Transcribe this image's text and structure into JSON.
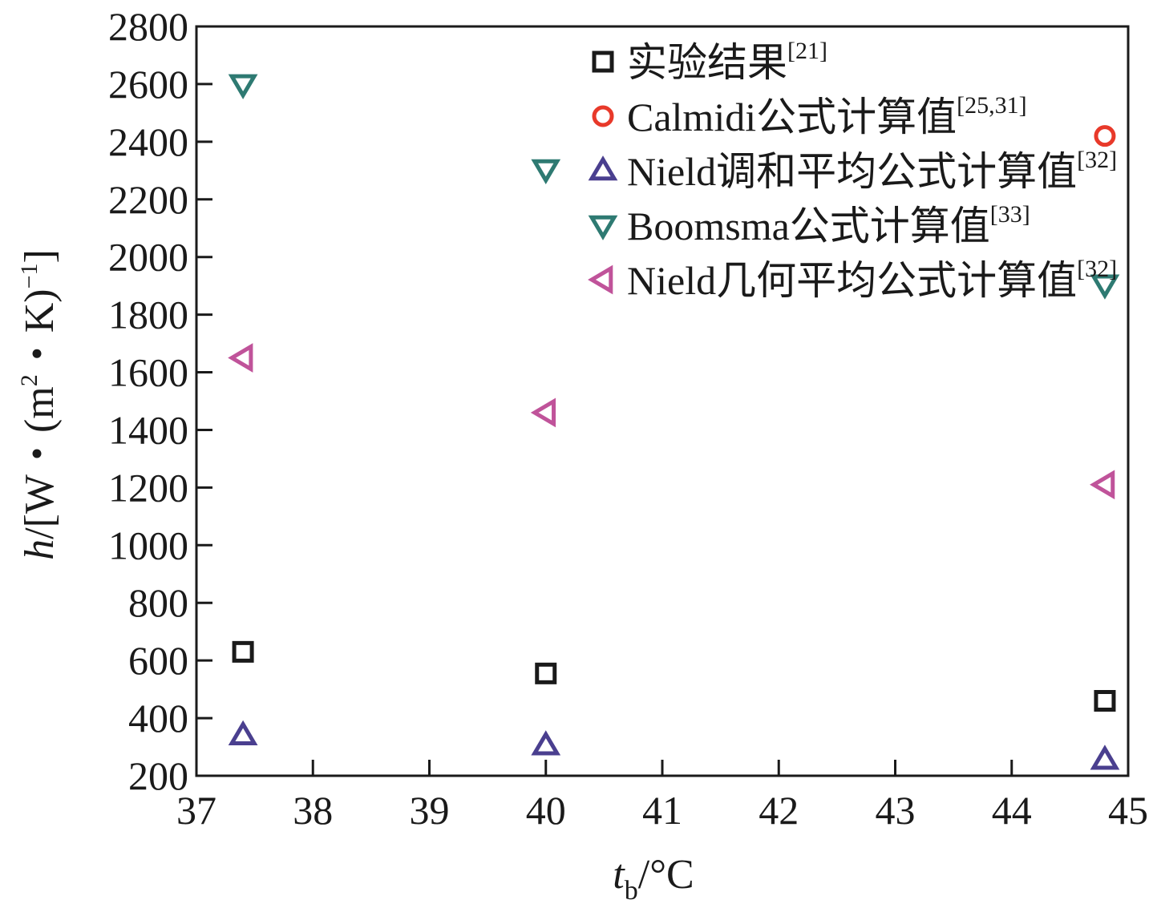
{
  "chart_data": {
    "type": "scatter",
    "xlabel": {
      "main": "t",
      "sub": "b",
      "unit": "/°C"
    },
    "ylabel": {
      "main": "h",
      "unit_a": "/[W・(m",
      "sup_a": "2",
      "unit_b": "・K)",
      "sup_b": "−1",
      "unit_c": "]"
    },
    "xlim": [
      37,
      45
    ],
    "ylim": [
      200,
      2800
    ],
    "xticks": [
      37,
      38,
      39,
      40,
      41,
      42,
      43,
      44,
      45
    ],
    "yticks": [
      200,
      400,
      600,
      800,
      1000,
      1200,
      1400,
      1600,
      1800,
      2000,
      2200,
      2400,
      2600,
      2800
    ],
    "grid": false,
    "legend_position": "top-right",
    "series": [
      {
        "name": "实验结果",
        "ref": "[21]",
        "marker": "square",
        "color": "#1a1a1a",
        "x": [
          37.4,
          40.0,
          44.8
        ],
        "y": [
          630,
          555,
          460
        ]
      },
      {
        "name": "Calmidi公式计算值",
        "ref": "[25,31]",
        "marker": "circle",
        "color": "#e8392a",
        "x": [
          44.8
        ],
        "y": [
          2420
        ]
      },
      {
        "name": "Nield调和平均公式计算值",
        "ref": "[32]",
        "marker": "triangle-up",
        "color": "#4a3f8f",
        "x": [
          37.4,
          40.0,
          44.8
        ],
        "y": [
          340,
          305,
          255
        ]
      },
      {
        "name": "Boomsma公式计算值",
        "ref": "[33]",
        "marker": "triangle-down",
        "color": "#2e7a72",
        "x": [
          37.4,
          40.0,
          44.8
        ],
        "y": [
          2600,
          2305,
          1905
        ]
      },
      {
        "name": "Nield几何平均公式计算值",
        "ref": "[32]",
        "marker": "triangle-left",
        "color": "#c0539a",
        "x": [
          37.4,
          40.0,
          44.8
        ],
        "y": [
          1650,
          1460,
          1210
        ]
      }
    ]
  }
}
